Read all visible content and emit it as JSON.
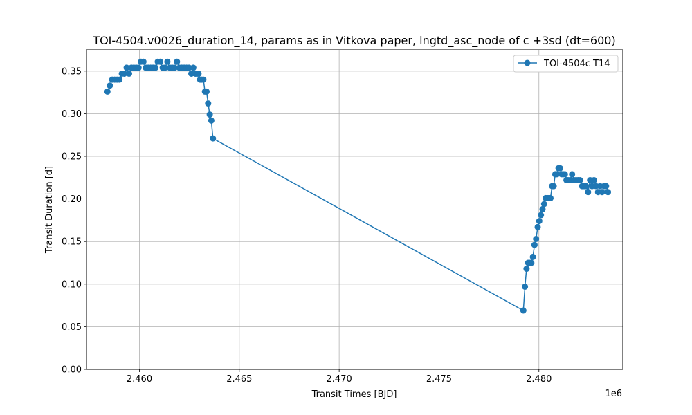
{
  "chart_data": {
    "type": "line",
    "title": "TOI-4504.v0026_duration_14, params as in Vitkova paper, lngtd_asc_node of c +3sd (dt=600)",
    "xlabel": "Transit Times [BJD]",
    "ylabel": "Transit Duration [d]",
    "x_offset_label": "1e6",
    "xlim": [
      2457350,
      2484200
    ],
    "ylim": [
      0.0,
      0.375
    ],
    "xticks": [
      2460000,
      2465000,
      2470000,
      2475000,
      2480000
    ],
    "xtick_labels": [
      "2.460",
      "2.465",
      "2.470",
      "2.475",
      "2.480"
    ],
    "yticks": [
      0.0,
      0.05,
      0.1,
      0.15,
      0.2,
      0.25,
      0.3,
      0.35
    ],
    "ytick_labels": [
      "0.00",
      "0.05",
      "0.10",
      "0.15",
      "0.20",
      "0.25",
      "0.30",
      "0.35"
    ],
    "grid": true,
    "legend_position": "top-right",
    "series": [
      {
        "name": "TOI-4504c T14",
        "color": "#1f77b4",
        "marker": "circle",
        "x": [
          2458400,
          2458520,
          2458640,
          2458760,
          2458880,
          2459000,
          2459120,
          2459240,
          2459360,
          2459480,
          2459600,
          2459720,
          2459840,
          2459960,
          2460080,
          2460200,
          2460320,
          2460440,
          2460560,
          2460680,
          2460800,
          2460920,
          2461040,
          2461160,
          2461280,
          2461400,
          2461520,
          2461640,
          2461760,
          2461880,
          2462000,
          2462120,
          2462240,
          2462360,
          2462480,
          2462600,
          2462700,
          2462800,
          2462880,
          2462960,
          2463040,
          2463120,
          2463200,
          2463280,
          2463360,
          2463440,
          2463520,
          2463600,
          2463680,
          2479220,
          2479300,
          2479380,
          2479460,
          2479540,
          2479620,
          2479700,
          2479780,
          2479860,
          2479940,
          2480020,
          2480100,
          2480180,
          2480260,
          2480340,
          2480420,
          2480500,
          2480580,
          2480660,
          2480740,
          2480820,
          2480900,
          2480980,
          2481060,
          2481140,
          2481220,
          2481300,
          2481380,
          2481460,
          2481560,
          2481660,
          2481760,
          2481860,
          2481960,
          2482060,
          2482160,
          2482260,
          2482360,
          2482460,
          2482560,
          2482660,
          2482760,
          2482860,
          2482960,
          2483060,
          2483160,
          2483260,
          2483360,
          2483460
        ],
        "y": [
          0.326,
          0.333,
          0.34,
          0.34,
          0.34,
          0.34,
          0.347,
          0.347,
          0.354,
          0.347,
          0.354,
          0.354,
          0.354,
          0.354,
          0.361,
          0.361,
          0.354,
          0.354,
          0.354,
          0.354,
          0.354,
          0.361,
          0.361,
          0.354,
          0.354,
          0.361,
          0.354,
          0.354,
          0.354,
          0.361,
          0.354,
          0.354,
          0.354,
          0.354,
          0.354,
          0.347,
          0.354,
          0.347,
          0.347,
          0.347,
          0.34,
          0.34,
          0.34,
          0.326,
          0.326,
          0.312,
          0.299,
          0.292,
          0.271,
          0.069,
          0.097,
          0.118,
          0.125,
          0.125,
          0.125,
          0.132,
          0.146,
          0.153,
          0.167,
          0.174,
          0.181,
          0.188,
          0.194,
          0.201,
          0.201,
          0.201,
          0.201,
          0.215,
          0.215,
          0.229,
          0.229,
          0.236,
          0.236,
          0.229,
          0.229,
          0.229,
          0.222,
          0.222,
          0.222,
          0.229,
          0.222,
          0.222,
          0.222,
          0.222,
          0.215,
          0.215,
          0.215,
          0.208,
          0.222,
          0.215,
          0.222,
          0.215,
          0.208,
          0.215,
          0.208,
          0.215,
          0.215,
          0.208
        ]
      }
    ]
  }
}
